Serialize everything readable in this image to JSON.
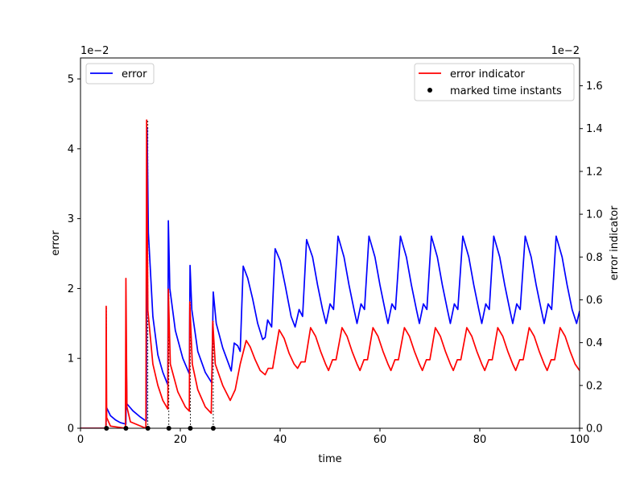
{
  "chart_data": {
    "type": "line",
    "xlabel": "time",
    "ylabel_left": "error",
    "ylabel_right": "error indicator",
    "left_multiplier": "1e−2",
    "right_multiplier": "1e−2",
    "xlim": [
      0,
      100
    ],
    "ylim_left": [
      0,
      5.3
    ],
    "ylim_right": [
      0,
      1.73
    ],
    "xticks": [
      0,
      20,
      40,
      60,
      80,
      100
    ],
    "yticks_left": [
      0,
      1,
      2,
      3,
      4,
      5
    ],
    "yticks_right": [
      0.0,
      0.2,
      0.4,
      0.6,
      0.8,
      1.0,
      1.2,
      1.4,
      1.6
    ],
    "grid": false,
    "legend_left": {
      "placement": "top-left",
      "entries": [
        "error"
      ]
    },
    "legend_right": {
      "placement": "top-right",
      "entries": [
        "error indicator",
        "marked time instants"
      ]
    },
    "series": [
      {
        "name": "error",
        "axis": "left",
        "color": "#0000ff",
        "points": [
          [
            0,
            0
          ],
          [
            5.1,
            0
          ],
          [
            5.2,
            0.3
          ],
          [
            6,
            0.18
          ],
          [
            7,
            0.12
          ],
          [
            8,
            0.08
          ],
          [
            9.1,
            0.06
          ],
          [
            9.2,
            0.85
          ],
          [
            9.3,
            0.35
          ],
          [
            10.5,
            0.25
          ],
          [
            12,
            0.16
          ],
          [
            13.2,
            0.1
          ],
          [
            13.35,
            4.3
          ],
          [
            13.6,
            2.8
          ],
          [
            14.5,
            1.6
          ],
          [
            15.5,
            1.05
          ],
          [
            16.5,
            0.8
          ],
          [
            17.5,
            0.62
          ],
          [
            17.6,
            2.97
          ],
          [
            17.9,
            2.0
          ],
          [
            19,
            1.4
          ],
          [
            20.5,
            1.0
          ],
          [
            21.8,
            0.78
          ],
          [
            21.95,
            2.33
          ],
          [
            22.3,
            1.7
          ],
          [
            23.5,
            1.1
          ],
          [
            25,
            0.8
          ],
          [
            26.3,
            0.65
          ],
          [
            26.6,
            1.95
          ],
          [
            27.2,
            1.5
          ],
          [
            28.5,
            1.15
          ],
          [
            30.2,
            0.82
          ],
          [
            30.8,
            1.22
          ],
          [
            31.5,
            1.18
          ],
          [
            32,
            1.1
          ],
          [
            32.6,
            2.32
          ],
          [
            33.5,
            2.15
          ],
          [
            34.5,
            1.85
          ],
          [
            35.5,
            1.5
          ],
          [
            36.5,
            1.27
          ],
          [
            37,
            1.3
          ],
          [
            37.5,
            1.55
          ],
          [
            38.3,
            1.45
          ],
          [
            39,
            2.57
          ],
          [
            40,
            2.4
          ],
          [
            41,
            2.05
          ],
          [
            42.2,
            1.6
          ],
          [
            43,
            1.45
          ],
          [
            43.8,
            1.7
          ],
          [
            44.5,
            1.6
          ],
          [
            45.3,
            2.7
          ],
          [
            46.5,
            2.45
          ],
          [
            47.5,
            2.05
          ],
          [
            48.5,
            1.7
          ],
          [
            49.2,
            1.5
          ],
          [
            50,
            1.78
          ],
          [
            50.7,
            1.7
          ],
          [
            51.6,
            2.75
          ],
          [
            52.8,
            2.45
          ],
          [
            53.8,
            2.05
          ],
          [
            54.8,
            1.7
          ],
          [
            55.4,
            1.5
          ],
          [
            56.2,
            1.78
          ],
          [
            56.9,
            1.7
          ],
          [
            57.8,
            2.75
          ],
          [
            59,
            2.45
          ],
          [
            60,
            2.05
          ],
          [
            61,
            1.7
          ],
          [
            61.6,
            1.5
          ],
          [
            62.4,
            1.78
          ],
          [
            63.1,
            1.7
          ],
          [
            64.1,
            2.75
          ],
          [
            65.3,
            2.45
          ],
          [
            66.3,
            2.05
          ],
          [
            67.3,
            1.7
          ],
          [
            67.9,
            1.5
          ],
          [
            68.7,
            1.78
          ],
          [
            69.4,
            1.7
          ],
          [
            70.3,
            2.75
          ],
          [
            71.5,
            2.45
          ],
          [
            72.5,
            2.05
          ],
          [
            73.5,
            1.7
          ],
          [
            74.1,
            1.5
          ],
          [
            74.9,
            1.78
          ],
          [
            75.6,
            1.7
          ],
          [
            76.6,
            2.75
          ],
          [
            77.8,
            2.45
          ],
          [
            78.8,
            2.05
          ],
          [
            79.8,
            1.7
          ],
          [
            80.4,
            1.5
          ],
          [
            81.2,
            1.78
          ],
          [
            81.9,
            1.7
          ],
          [
            82.8,
            2.75
          ],
          [
            84,
            2.45
          ],
          [
            85,
            2.05
          ],
          [
            86,
            1.7
          ],
          [
            86.6,
            1.5
          ],
          [
            87.4,
            1.78
          ],
          [
            88.1,
            1.7
          ],
          [
            89.1,
            2.75
          ],
          [
            90.3,
            2.45
          ],
          [
            91.3,
            2.05
          ],
          [
            92.3,
            1.7
          ],
          [
            92.9,
            1.5
          ],
          [
            93.7,
            1.78
          ],
          [
            94.4,
            1.7
          ],
          [
            95.3,
            2.75
          ],
          [
            96.5,
            2.45
          ],
          [
            97.5,
            2.05
          ],
          [
            98.5,
            1.7
          ],
          [
            99.4,
            1.5
          ],
          [
            100,
            1.68
          ]
        ]
      },
      {
        "name": "error indicator",
        "axis": "right",
        "color": "#ff0000",
        "points": [
          [
            0,
            0
          ],
          [
            5.1,
            0
          ],
          [
            5.15,
            0.57
          ],
          [
            5.25,
            0.05
          ],
          [
            6,
            0.01
          ],
          [
            9.0,
            0.0
          ],
          [
            9.1,
            0.7
          ],
          [
            9.3,
            0.1
          ],
          [
            10,
            0.03
          ],
          [
            13.1,
            0.0
          ],
          [
            13.25,
            1.44
          ],
          [
            13.5,
            0.55
          ],
          [
            14.5,
            0.3
          ],
          [
            15.5,
            0.2
          ],
          [
            16.5,
            0.13
          ],
          [
            17.5,
            0.09
          ],
          [
            17.6,
            0.65
          ],
          [
            18,
            0.3
          ],
          [
            19.5,
            0.17
          ],
          [
            21,
            0.1
          ],
          [
            21.8,
            0.08
          ],
          [
            21.9,
            0.59
          ],
          [
            22.4,
            0.3
          ],
          [
            23.5,
            0.18
          ],
          [
            25,
            0.1
          ],
          [
            26.2,
            0.07
          ],
          [
            26.5,
            0.5
          ],
          [
            27,
            0.3
          ],
          [
            28.5,
            0.2
          ],
          [
            30,
            0.13
          ],
          [
            31,
            0.18
          ],
          [
            32,
            0.3
          ],
          [
            33.2,
            0.41
          ],
          [
            34,
            0.38
          ],
          [
            35,
            0.32
          ],
          [
            36,
            0.27
          ],
          [
            37,
            0.25
          ],
          [
            37.6,
            0.28
          ],
          [
            38.5,
            0.28
          ],
          [
            39.8,
            0.46
          ],
          [
            40.8,
            0.42
          ],
          [
            41.8,
            0.35
          ],
          [
            42.8,
            0.3
          ],
          [
            43.5,
            0.28
          ],
          [
            44.2,
            0.31
          ],
          [
            45,
            0.31
          ],
          [
            46.1,
            0.47
          ],
          [
            47.1,
            0.43
          ],
          [
            48.1,
            0.36
          ],
          [
            49.1,
            0.3
          ],
          [
            49.7,
            0.27
          ],
          [
            50.5,
            0.32
          ],
          [
            51.2,
            0.32
          ],
          [
            52.4,
            0.47
          ],
          [
            53.4,
            0.43
          ],
          [
            54.4,
            0.36
          ],
          [
            55.4,
            0.3
          ],
          [
            56,
            0.27
          ],
          [
            56.8,
            0.32
          ],
          [
            57.5,
            0.32
          ],
          [
            58.6,
            0.47
          ],
          [
            59.6,
            0.43
          ],
          [
            60.6,
            0.36
          ],
          [
            61.6,
            0.3
          ],
          [
            62.2,
            0.27
          ],
          [
            63,
            0.32
          ],
          [
            63.7,
            0.32
          ],
          [
            64.9,
            0.47
          ],
          [
            65.9,
            0.43
          ],
          [
            66.9,
            0.36
          ],
          [
            67.9,
            0.3
          ],
          [
            68.5,
            0.27
          ],
          [
            69.3,
            0.32
          ],
          [
            70,
            0.32
          ],
          [
            71.1,
            0.47
          ],
          [
            72.1,
            0.43
          ],
          [
            73.1,
            0.36
          ],
          [
            74.1,
            0.3
          ],
          [
            74.7,
            0.27
          ],
          [
            75.5,
            0.32
          ],
          [
            76.2,
            0.32
          ],
          [
            77.4,
            0.47
          ],
          [
            78.4,
            0.43
          ],
          [
            79.4,
            0.36
          ],
          [
            80.4,
            0.3
          ],
          [
            81,
            0.27
          ],
          [
            81.8,
            0.32
          ],
          [
            82.5,
            0.32
          ],
          [
            83.6,
            0.47
          ],
          [
            84.6,
            0.43
          ],
          [
            85.6,
            0.36
          ],
          [
            86.6,
            0.3
          ],
          [
            87.2,
            0.27
          ],
          [
            88,
            0.32
          ],
          [
            88.7,
            0.32
          ],
          [
            89.9,
            0.47
          ],
          [
            90.9,
            0.43
          ],
          [
            91.9,
            0.36
          ],
          [
            92.9,
            0.3
          ],
          [
            93.5,
            0.27
          ],
          [
            94.3,
            0.32
          ],
          [
            95,
            0.32
          ],
          [
            96.1,
            0.47
          ],
          [
            97.1,
            0.43
          ],
          [
            98.1,
            0.36
          ],
          [
            99.1,
            0.3
          ],
          [
            100,
            0.27
          ]
        ]
      }
    ],
    "marked_time_instants": {
      "name": "marked time instants",
      "color": "#000000",
      "x": [
        5.2,
        9.1,
        13.5,
        17.7,
        22.0,
        26.6
      ]
    }
  }
}
